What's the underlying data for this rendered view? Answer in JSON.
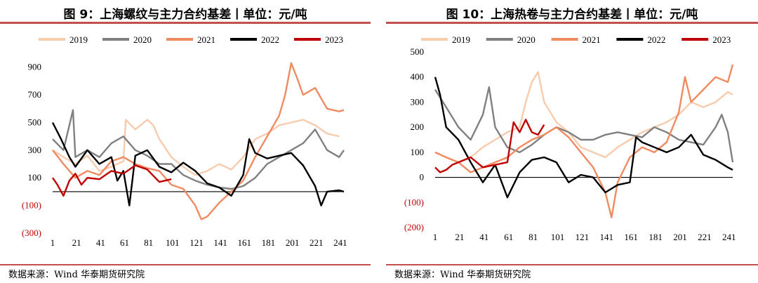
{
  "chart_data": [
    {
      "type": "line",
      "title": "图 9：上海螺纹与主力合约基差丨单位：元/吨",
      "source": "数据来源：Wind 华泰期货研究院",
      "xlabel": "",
      "ylabel": "",
      "xlim": [
        1,
        244
      ],
      "ylim": [
        -300,
        1000
      ],
      "yticks": [
        900,
        700,
        500,
        300,
        100,
        -100,
        -300
      ],
      "ytick_labels": [
        "900",
        "700",
        "500",
        "300",
        "100",
        "(100)",
        "(300)"
      ],
      "xticks": [
        1,
        21,
        41,
        61,
        81,
        101,
        121,
        141,
        161,
        181,
        201,
        221,
        241
      ],
      "legend_position": "top",
      "grid": false,
      "series": [
        {
          "name": "2019",
          "color": "#f8cbad",
          "x": [
            1,
            10,
            20,
            30,
            40,
            50,
            60,
            62,
            70,
            80,
            85,
            90,
            100,
            110,
            120,
            130,
            140,
            150,
            160,
            170,
            180,
            190,
            200,
            210,
            220,
            230,
            240
          ],
          "values": [
            300,
            250,
            200,
            260,
            150,
            180,
            220,
            520,
            450,
            520,
            480,
            380,
            250,
            180,
            120,
            150,
            200,
            160,
            250,
            380,
            420,
            480,
            500,
            520,
            480,
            420,
            400
          ]
        },
        {
          "name": "2020",
          "color": "#808080",
          "x": [
            1,
            10,
            18,
            20,
            30,
            40,
            50,
            60,
            70,
            80,
            90,
            100,
            110,
            120,
            130,
            140,
            150,
            160,
            170,
            180,
            190,
            200,
            210,
            220,
            230,
            240,
            244
          ],
          "values": [
            380,
            300,
            590,
            250,
            300,
            250,
            350,
            400,
            300,
            260,
            200,
            200,
            120,
            80,
            50,
            30,
            20,
            40,
            100,
            200,
            250,
            300,
            350,
            450,
            300,
            250,
            300
          ]
        },
        {
          "name": "2021",
          "color": "#f08a60",
          "x": [
            1,
            10,
            20,
            30,
            40,
            50,
            60,
            70,
            80,
            90,
            100,
            110,
            120,
            125,
            130,
            140,
            150,
            160,
            170,
            180,
            190,
            195,
            200,
            205,
            210,
            220,
            230,
            240,
            244
          ],
          "values": [
            300,
            200,
            100,
            150,
            120,
            220,
            250,
            200,
            170,
            150,
            50,
            20,
            -100,
            -200,
            -180,
            -80,
            0,
            80,
            250,
            400,
            550,
            700,
            930,
            820,
            700,
            750,
            600,
            580,
            590
          ]
        },
        {
          "name": "2022",
          "color": "#000000",
          "x": [
            1,
            8,
            15,
            20,
            30,
            40,
            50,
            55,
            60,
            65,
            70,
            80,
            90,
            100,
            110,
            120,
            130,
            140,
            150,
            160,
            165,
            170,
            180,
            190,
            200,
            210,
            220,
            225,
            230,
            240,
            244
          ],
          "values": [
            500,
            380,
            250,
            180,
            300,
            200,
            250,
            80,
            150,
            -100,
            260,
            300,
            180,
            140,
            210,
            150,
            60,
            30,
            -30,
            120,
            380,
            280,
            240,
            260,
            280,
            190,
            40,
            -100,
            0,
            10,
            0
          ]
        },
        {
          "name": "2023",
          "color": "#c00000",
          "x": [
            1,
            5,
            10,
            15,
            20,
            25,
            30,
            40,
            50,
            60,
            70,
            80,
            90,
            100
          ],
          "values": [
            100,
            50,
            -30,
            80,
            130,
            50,
            100,
            90,
            150,
            130,
            190,
            160,
            70,
            90
          ]
        }
      ]
    },
    {
      "type": "line",
      "title": "图 10：上海热卷与主力合约基差丨单位：元/吨",
      "source": "数据来源：Wind 华泰期货研究院",
      "xlabel": "",
      "ylabel": "",
      "xlim": [
        1,
        244
      ],
      "ylim": [
        -200,
        500
      ],
      "yticks": [
        500,
        400,
        300,
        200,
        100,
        0,
        -100,
        -200
      ],
      "ytick_labels": [
        "500",
        "400",
        "300",
        "200",
        "100",
        "0",
        "(100)",
        "(200)"
      ],
      "xticks": [
        1,
        21,
        41,
        61,
        81,
        101,
        121,
        141,
        161,
        181,
        201,
        221,
        241
      ],
      "legend_position": "top",
      "grid": false,
      "series": [
        {
          "name": "2019",
          "color": "#f8cbad",
          "x": [
            1,
            10,
            20,
            30,
            40,
            50,
            60,
            70,
            75,
            80,
            85,
            90,
            100,
            110,
            120,
            130,
            140,
            150,
            160,
            170,
            180,
            190,
            200,
            210,
            220,
            230,
            240,
            244
          ],
          "values": [
            100,
            80,
            60,
            80,
            120,
            150,
            180,
            200,
            300,
            380,
            420,
            300,
            220,
            180,
            120,
            100,
            80,
            120,
            150,
            180,
            200,
            220,
            250,
            300,
            280,
            300,
            340,
            330
          ]
        },
        {
          "name": "2020",
          "color": "#808080",
          "x": [
            1,
            10,
            20,
            30,
            40,
            45,
            50,
            60,
            70,
            80,
            90,
            100,
            110,
            120,
            130,
            140,
            150,
            160,
            170,
            180,
            190,
            200,
            210,
            220,
            230,
            235,
            240,
            244
          ],
          "values": [
            350,
            280,
            200,
            150,
            250,
            360,
            200,
            120,
            100,
            130,
            170,
            200,
            180,
            150,
            150,
            170,
            180,
            170,
            160,
            200,
            180,
            150,
            140,
            130,
            200,
            250,
            180,
            60
          ]
        },
        {
          "name": "2021",
          "color": "#f08a60",
          "x": [
            1,
            10,
            20,
            30,
            40,
            50,
            60,
            70,
            80,
            90,
            100,
            110,
            120,
            130,
            140,
            145,
            150,
            160,
            170,
            180,
            190,
            200,
            205,
            210,
            220,
            230,
            240,
            244
          ],
          "values": [
            100,
            80,
            60,
            20,
            40,
            60,
            80,
            120,
            150,
            170,
            200,
            160,
            100,
            40,
            -60,
            -160,
            -20,
            80,
            120,
            100,
            140,
            260,
            400,
            300,
            350,
            400,
            380,
            450
          ]
        },
        {
          "name": "2022",
          "color": "#000000",
          "x": [
            1,
            5,
            10,
            20,
            30,
            40,
            50,
            60,
            70,
            80,
            90,
            100,
            110,
            120,
            130,
            140,
            150,
            160,
            165,
            170,
            180,
            190,
            200,
            210,
            220,
            230,
            240,
            244
          ],
          "values": [
            400,
            330,
            200,
            150,
            60,
            -20,
            50,
            -80,
            20,
            70,
            80,
            60,
            -20,
            10,
            0,
            -60,
            -30,
            -20,
            160,
            140,
            120,
            100,
            120,
            170,
            90,
            70,
            40,
            30
          ]
        },
        {
          "name": "2023",
          "color": "#c00000",
          "x": [
            1,
            5,
            10,
            15,
            20,
            30,
            40,
            50,
            60,
            65,
            70,
            75,
            80,
            85,
            90
          ],
          "values": [
            40,
            20,
            30,
            50,
            60,
            80,
            40,
            50,
            60,
            220,
            180,
            230,
            180,
            170,
            210
          ]
        }
      ]
    }
  ]
}
